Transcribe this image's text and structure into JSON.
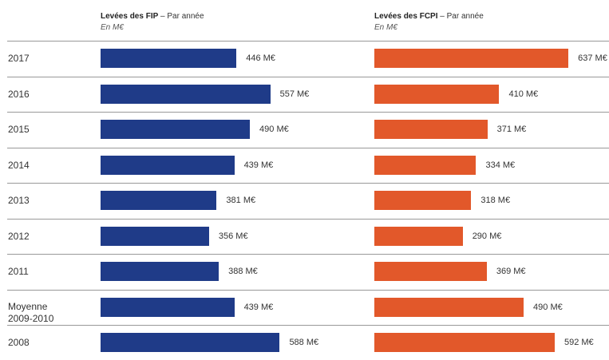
{
  "headers": {
    "fip_title": "Levées des FIP",
    "fip_sub": " – Par année",
    "fip_unit": "En M€",
    "fcpi_title": "Levées des FCPI",
    "fcpi_sub": " – Par année",
    "fcpi_unit": "En M€"
  },
  "colors": {
    "fip": "#1f3b88",
    "fcpi": "#e2582a"
  },
  "chart_data": [
    {
      "type": "bar",
      "orientation": "horizontal",
      "title": "Levées des FIP – Par année",
      "unit": "En M€",
      "categories": [
        "2017",
        "2016",
        "2015",
        "2014",
        "2013",
        "2012",
        "2011",
        "Moyenne 2009-2010",
        "2008"
      ],
      "values": [
        446,
        557,
        490,
        439,
        381,
        356,
        388,
        439,
        588
      ],
      "labels": [
        "446 M€",
        "557 M€",
        "490 M€",
        "439 M€",
        "381 M€",
        "356 M€",
        "388 M€",
        "439 M€",
        "588 M€"
      ]
    },
    {
      "type": "bar",
      "orientation": "horizontal",
      "title": "Levées des FCPI – Par année",
      "unit": "En M€",
      "categories": [
        "2017",
        "2016",
        "2015",
        "2014",
        "2013",
        "2012",
        "2011",
        "Moyenne 2009-2010",
        "2008"
      ],
      "values": [
        637,
        410,
        371,
        334,
        318,
        290,
        369,
        490,
        592
      ],
      "labels": [
        "637 M€",
        "410 M€",
        "371 M€",
        "334 M€",
        "318 M€",
        "290 M€",
        "369 M€",
        "490 M€",
        "592 M€"
      ]
    }
  ],
  "rows": [
    {
      "year_line1": "2017",
      "year_line2": ""
    },
    {
      "year_line1": "2016",
      "year_line2": ""
    },
    {
      "year_line1": "2015",
      "year_line2": ""
    },
    {
      "year_line1": "2014",
      "year_line2": ""
    },
    {
      "year_line1": "2013",
      "year_line2": ""
    },
    {
      "year_line1": "2012",
      "year_line2": ""
    },
    {
      "year_line1": "2011",
      "year_line2": ""
    },
    {
      "year_line1": "Moyenne",
      "year_line2": "2009-2010"
    },
    {
      "year_line1": "2008",
      "year_line2": ""
    }
  ]
}
